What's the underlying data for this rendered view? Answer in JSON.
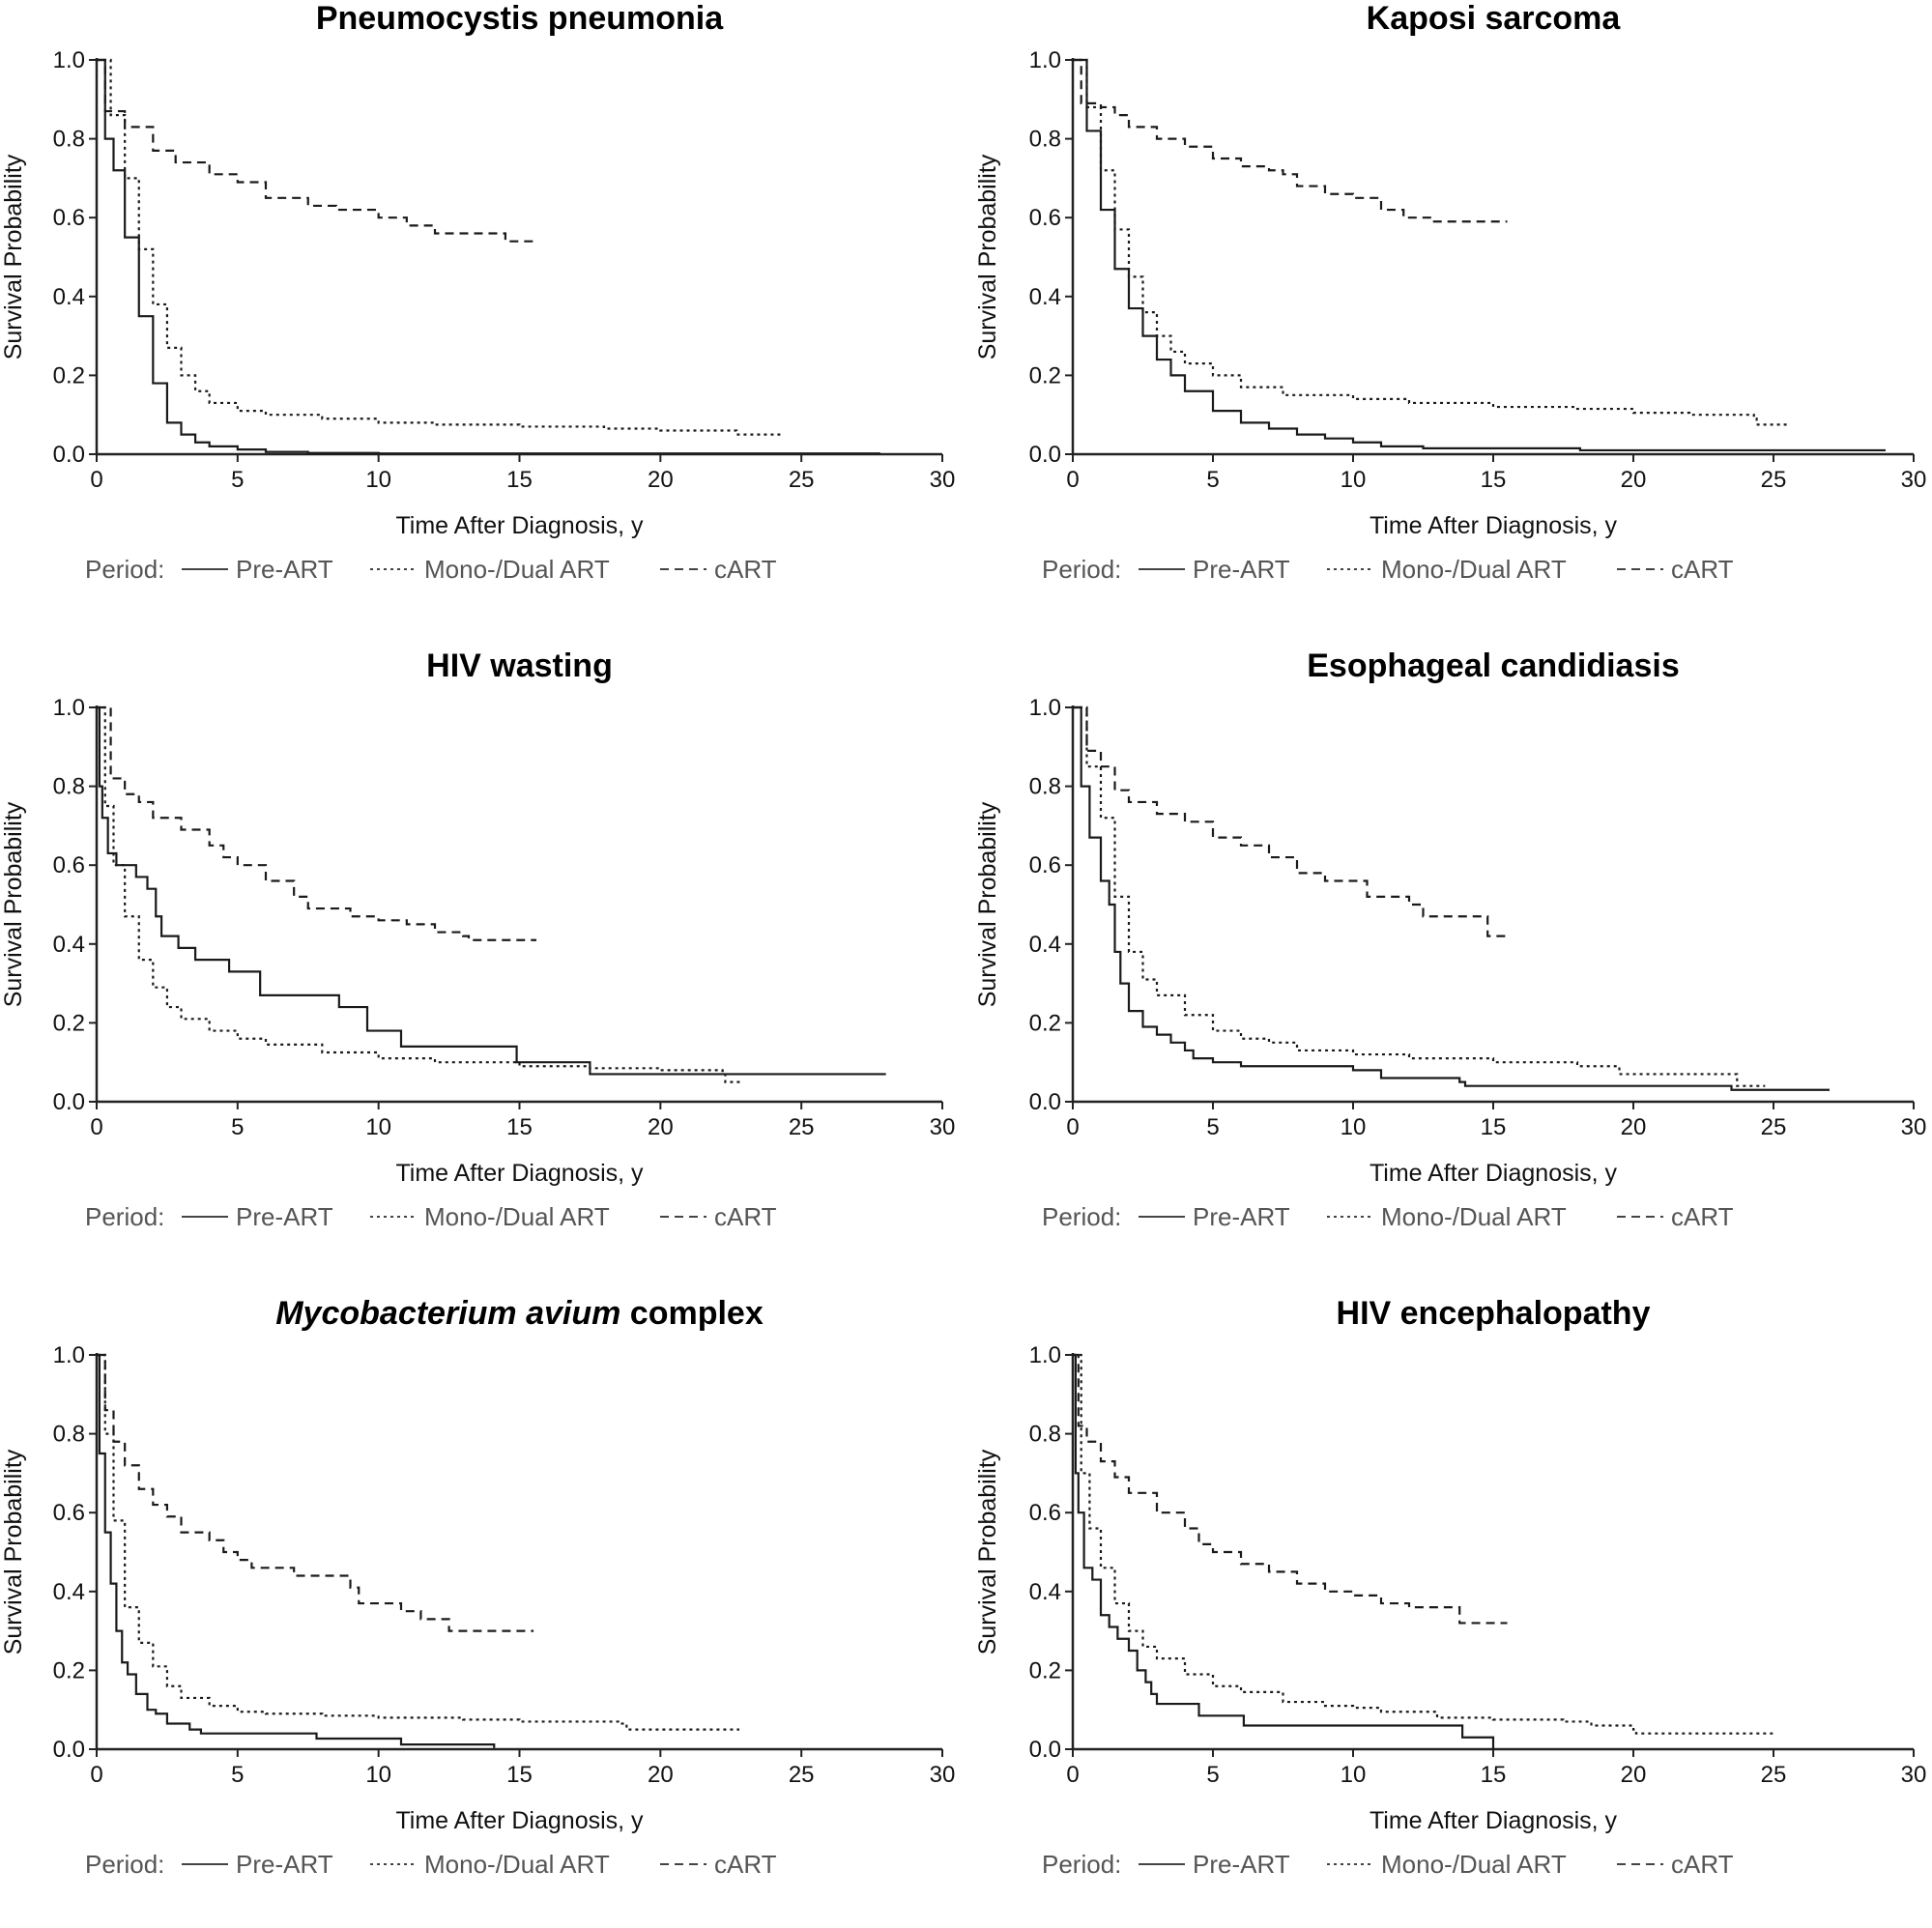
{
  "figure": {
    "legend_title": "Period:",
    "x_axis_label": "Time After Diagnosis, y",
    "y_axis_label": "Survival Probability",
    "series_names": [
      "Pre-ART",
      "Mono-/Dual ART",
      "cART"
    ],
    "series_styles": [
      "solid",
      "dotted",
      "dashed"
    ]
  },
  "chart_data": [
    {
      "type": "line",
      "title": "Pneumocystis pneumonia",
      "title_italic_part": "",
      "xlabel": "Time After Diagnosis, y",
      "ylabel": "Survival Probability",
      "xlim": [
        0,
        30
      ],
      "ylim": [
        0,
        1
      ],
      "xticks": [
        "0",
        "5",
        "10",
        "15",
        "20",
        "25",
        "30"
      ],
      "yticks": [
        "0.0",
        "0.2",
        "0.4",
        "0.6",
        "0.8",
        "1.0"
      ],
      "grid": false,
      "legend": "bottom",
      "series": [
        {
          "name": "Pre-ART",
          "x": [
            0,
            0.3,
            0.6,
            1,
            1.5,
            2,
            2.5,
            3,
            3.5,
            4,
            5,
            6,
            7.5,
            10,
            15,
            20,
            27.8
          ],
          "y": [
            1,
            0.8,
            0.72,
            0.55,
            0.35,
            0.18,
            0.08,
            0.05,
            0.03,
            0.02,
            0.012,
            0.006,
            0.003,
            0.002,
            0.002,
            0.002,
            0.002
          ]
        },
        {
          "name": "Mono-/Dual ART",
          "x": [
            0,
            0.5,
            1,
            1.5,
            2,
            2.5,
            3,
            3.5,
            4,
            5,
            6,
            8,
            10,
            12,
            15,
            18,
            20,
            22.6,
            22.7,
            24.3
          ],
          "y": [
            1,
            0.86,
            0.7,
            0.52,
            0.38,
            0.27,
            0.2,
            0.16,
            0.13,
            0.11,
            0.1,
            0.09,
            0.08,
            0.075,
            0.07,
            0.065,
            0.06,
            0.06,
            0.05,
            0.05
          ]
        },
        {
          "name": "cART",
          "x": [
            0,
            0.3,
            1,
            2,
            2.8,
            4,
            5,
            6,
            7.5,
            8.5,
            10,
            11,
            12,
            13,
            14.5,
            15.6
          ],
          "y": [
            1,
            0.87,
            0.83,
            0.77,
            0.74,
            0.71,
            0.69,
            0.65,
            0.63,
            0.62,
            0.6,
            0.58,
            0.56,
            0.56,
            0.54,
            0.54
          ]
        }
      ]
    },
    {
      "type": "line",
      "title": "Kaposi sarcoma",
      "title_italic_part": "",
      "xlabel": "Time After Diagnosis, y",
      "ylabel": "Survival Probability",
      "xlim": [
        0,
        30
      ],
      "ylim": [
        0,
        1
      ],
      "xticks": [
        "0",
        "5",
        "10",
        "15",
        "20",
        "25",
        "30"
      ],
      "yticks": [
        "0.0",
        "0.2",
        "0.4",
        "0.6",
        "0.8",
        "1.0"
      ],
      "grid": false,
      "legend": "bottom",
      "series": [
        {
          "name": "Pre-ART",
          "x": [
            0,
            0.5,
            1,
            1.5,
            2,
            2.5,
            3,
            3.5,
            4,
            5,
            6,
            7,
            8,
            9,
            10,
            11,
            12.5,
            15,
            18,
            18.1,
            29
          ],
          "y": [
            1,
            0.82,
            0.62,
            0.47,
            0.37,
            0.3,
            0.24,
            0.2,
            0.16,
            0.11,
            0.08,
            0.065,
            0.05,
            0.04,
            0.03,
            0.02,
            0.015,
            0.015,
            0.015,
            0.01,
            0.01
          ]
        },
        {
          "name": "Mono-/Dual ART",
          "x": [
            0,
            0.5,
            1,
            1.5,
            2,
            2.5,
            3,
            3.5,
            4,
            5,
            6,
            7.5,
            10,
            12,
            15,
            18,
            20,
            22,
            24.3,
            24.4,
            25.6
          ],
          "y": [
            1,
            0.88,
            0.72,
            0.57,
            0.45,
            0.36,
            0.3,
            0.26,
            0.23,
            0.2,
            0.17,
            0.15,
            0.14,
            0.13,
            0.12,
            0.115,
            0.105,
            0.1,
            0.09,
            0.075,
            0.075
          ]
        },
        {
          "name": "cART",
          "x": [
            0,
            0.3,
            1,
            1.5,
            2,
            3,
            4,
            5,
            6,
            7,
            7.5,
            8,
            9,
            10,
            11,
            11.8,
            12.8,
            15.5
          ],
          "y": [
            1,
            0.89,
            0.88,
            0.86,
            0.83,
            0.8,
            0.78,
            0.75,
            0.73,
            0.72,
            0.71,
            0.68,
            0.66,
            0.65,
            0.62,
            0.6,
            0.59,
            0.59
          ]
        }
      ]
    },
    {
      "type": "line",
      "title": "HIV wasting",
      "title_italic_part": "",
      "xlabel": "Time After Diagnosis, y",
      "ylabel": "Survival Probability",
      "xlim": [
        0,
        30
      ],
      "ylim": [
        0,
        1
      ],
      "xticks": [
        "0",
        "5",
        "10",
        "15",
        "20",
        "25",
        "30"
      ],
      "yticks": [
        "0.0",
        "0.2",
        "0.4",
        "0.6",
        "0.8",
        "1.0"
      ],
      "grid": false,
      "legend": "bottom",
      "series": [
        {
          "name": "Pre-ART",
          "x": [
            0,
            0.1,
            0.2,
            0.4,
            0.7,
            1.4,
            1.8,
            2.1,
            2.3,
            2.9,
            3.5,
            4.7,
            5.8,
            8.6,
            9.6,
            10.8,
            14.9,
            17.5,
            28
          ],
          "y": [
            1,
            0.8,
            0.72,
            0.63,
            0.6,
            0.57,
            0.54,
            0.47,
            0.42,
            0.39,
            0.36,
            0.33,
            0.27,
            0.24,
            0.18,
            0.14,
            0.1,
            0.07,
            0.07
          ]
        },
        {
          "name": "Mono-/Dual ART",
          "x": [
            0,
            0.3,
            0.6,
            1,
            1.5,
            2,
            2.5,
            3,
            4,
            5,
            6,
            8,
            10,
            12,
            15,
            17.5,
            20,
            22.2,
            22.3,
            22.9
          ],
          "y": [
            1,
            0.75,
            0.6,
            0.47,
            0.36,
            0.29,
            0.24,
            0.21,
            0.18,
            0.16,
            0.145,
            0.125,
            0.11,
            0.1,
            0.09,
            0.085,
            0.08,
            0.078,
            0.05,
            0.05
          ]
        },
        {
          "name": "cART",
          "x": [
            0,
            0.5,
            1,
            1.5,
            2,
            3,
            4,
            4.5,
            5,
            6,
            7,
            7.5,
            8,
            9,
            10,
            11,
            12,
            13,
            13.2,
            15.6
          ],
          "y": [
            1,
            0.82,
            0.78,
            0.76,
            0.72,
            0.69,
            0.65,
            0.62,
            0.6,
            0.56,
            0.52,
            0.49,
            0.49,
            0.47,
            0.46,
            0.45,
            0.43,
            0.42,
            0.41,
            0.41
          ]
        }
      ]
    },
    {
      "type": "line",
      "title": "Esophageal candidiasis",
      "title_italic_part": "",
      "xlabel": "Time After Diagnosis, y",
      "ylabel": "Survival Probability",
      "xlim": [
        0,
        30
      ],
      "ylim": [
        0,
        1
      ],
      "xticks": [
        "0",
        "5",
        "10",
        "15",
        "20",
        "25",
        "30"
      ],
      "yticks": [
        "0.0",
        "0.2",
        "0.4",
        "0.6",
        "0.8",
        "1.0"
      ],
      "grid": false,
      "legend": "bottom",
      "series": [
        {
          "name": "Pre-ART",
          "x": [
            0,
            0.3,
            0.6,
            1,
            1.3,
            1.5,
            1.7,
            2,
            2.5,
            3,
            3.5,
            4,
            4.3,
            5,
            6,
            9.5,
            10,
            11,
            13.8,
            14,
            23.4,
            23.5,
            27
          ],
          "y": [
            1,
            0.8,
            0.67,
            0.56,
            0.5,
            0.38,
            0.3,
            0.23,
            0.19,
            0.17,
            0.15,
            0.13,
            0.11,
            0.1,
            0.09,
            0.09,
            0.08,
            0.06,
            0.05,
            0.04,
            0.04,
            0.03,
            0.03
          ]
        },
        {
          "name": "Mono-/Dual ART",
          "x": [
            0,
            0.5,
            1,
            1.5,
            2,
            2.5,
            3,
            4,
            5,
            6,
            7,
            8,
            10,
            12,
            15,
            18,
            19.5,
            20,
            23.6,
            23.7,
            24.7
          ],
          "y": [
            1,
            0.85,
            0.72,
            0.52,
            0.38,
            0.31,
            0.27,
            0.22,
            0.18,
            0.16,
            0.15,
            0.13,
            0.12,
            0.11,
            0.1,
            0.09,
            0.07,
            0.07,
            0.07,
            0.04,
            0.04
          ]
        },
        {
          "name": "cART",
          "x": [
            0,
            0.5,
            1,
            1.5,
            2,
            3,
            4,
            5,
            6,
            7,
            8,
            9,
            10,
            10.5,
            12,
            12.5,
            14.7,
            14.8,
            15.5
          ],
          "y": [
            1,
            0.89,
            0.85,
            0.79,
            0.76,
            0.73,
            0.71,
            0.67,
            0.65,
            0.62,
            0.58,
            0.56,
            0.56,
            0.52,
            0.5,
            0.47,
            0.47,
            0.42,
            0.42
          ]
        }
      ]
    },
    {
      "type": "line",
      "title": "Mycobacterium avium complex",
      "title_italic_part": "Mycobacterium avium",
      "xlabel": "Time After Diagnosis, y",
      "ylabel": "Survival Probability",
      "xlim": [
        0,
        30
      ],
      "ylim": [
        0,
        1
      ],
      "xticks": [
        "0",
        "5",
        "10",
        "15",
        "20",
        "25",
        "30"
      ],
      "yticks": [
        "0.0",
        "0.2",
        "0.4",
        "0.6",
        "0.8",
        "1.0"
      ],
      "grid": false,
      "legend": "bottom",
      "series": [
        {
          "name": "Pre-ART",
          "x": [
            0,
            0.1,
            0.3,
            0.5,
            0.7,
            0.9,
            1.1,
            1.4,
            1.8,
            2.1,
            2.5,
            3.3,
            3.7,
            7.8,
            10.8,
            14.1
          ],
          "y": [
            1,
            0.75,
            0.55,
            0.42,
            0.3,
            0.22,
            0.19,
            0.14,
            0.1,
            0.09,
            0.065,
            0.05,
            0.04,
            0.027,
            0.012,
            0.003
          ]
        },
        {
          "name": "Mono-/Dual ART",
          "x": [
            0,
            0.3,
            0.6,
            1,
            1.5,
            2,
            2.5,
            3,
            4,
            5,
            6,
            8,
            10,
            13,
            15,
            18.5,
            18.8,
            22.8
          ],
          "y": [
            1,
            0.8,
            0.58,
            0.36,
            0.27,
            0.21,
            0.16,
            0.13,
            0.11,
            0.095,
            0.09,
            0.085,
            0.08,
            0.075,
            0.07,
            0.065,
            0.05,
            0.05
          ]
        },
        {
          "name": "cART",
          "x": [
            0,
            0.3,
            0.6,
            1,
            1.5,
            2,
            2.5,
            3,
            4,
            4.5,
            5,
            5.5,
            7,
            8,
            9,
            9.3,
            10.8,
            11.5,
            12.5,
            15.5
          ],
          "y": [
            1,
            0.86,
            0.78,
            0.72,
            0.66,
            0.62,
            0.59,
            0.55,
            0.53,
            0.5,
            0.48,
            0.46,
            0.44,
            0.44,
            0.41,
            0.37,
            0.35,
            0.33,
            0.3,
            0.3
          ]
        }
      ]
    },
    {
      "type": "line",
      "title": "HIV encephalopathy",
      "title_italic_part": "",
      "xlabel": "Time After Diagnosis, y",
      "ylabel": "Survival Probability",
      "xlim": [
        0,
        30
      ],
      "ylim": [
        0,
        1
      ],
      "xticks": [
        "0",
        "5",
        "10",
        "15",
        "20",
        "25",
        "30"
      ],
      "yticks": [
        "0.0",
        "0.2",
        "0.4",
        "0.6",
        "0.8",
        "1.0"
      ],
      "grid": false,
      "legend": "bottom",
      "series": [
        {
          "name": "Pre-ART",
          "x": [
            0,
            0.1,
            0.2,
            0.4,
            0.7,
            1,
            1.3,
            1.6,
            2,
            2.3,
            2.6,
            2.8,
            3,
            4.5,
            6.1,
            13.9,
            15,
            15
          ],
          "y": [
            1,
            0.7,
            0.6,
            0.46,
            0.43,
            0.34,
            0.31,
            0.28,
            0.25,
            0.2,
            0.17,
            0.14,
            0.115,
            0.085,
            0.06,
            0.03,
            0.03,
            0
          ]
        },
        {
          "name": "Mono-/Dual ART",
          "x": [
            0,
            0.3,
            0.6,
            1,
            1.5,
            2,
            2.5,
            3,
            4,
            5,
            6,
            7.5,
            9,
            10,
            11,
            13,
            15,
            17.5,
            18.5,
            20,
            20.1,
            25
          ],
          "y": [
            1,
            0.7,
            0.56,
            0.46,
            0.37,
            0.3,
            0.26,
            0.23,
            0.19,
            0.16,
            0.145,
            0.12,
            0.11,
            0.105,
            0.095,
            0.08,
            0.075,
            0.07,
            0.06,
            0.05,
            0.04,
            0.04
          ]
        },
        {
          "name": "cART",
          "x": [
            0,
            0.2,
            0.5,
            1,
            1.5,
            2,
            3,
            4,
            4.5,
            5,
            6,
            7,
            8,
            9,
            10,
            11,
            12,
            13.7,
            13.8,
            15.5
          ],
          "y": [
            1,
            0.82,
            0.78,
            0.73,
            0.69,
            0.65,
            0.6,
            0.56,
            0.52,
            0.5,
            0.47,
            0.45,
            0.42,
            0.4,
            0.39,
            0.37,
            0.36,
            0.36,
            0.32,
            0.32
          ]
        }
      ]
    }
  ]
}
